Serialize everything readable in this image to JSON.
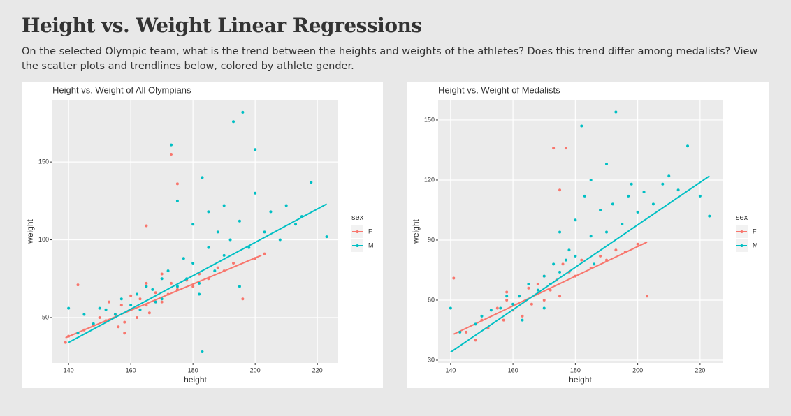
{
  "header": {
    "title": "Height vs. Weight Linear Regressions",
    "description": "On the selected Olympic team, what is the trend between the heights and weights of the athletes? Does this trend differ among medalists? View the scatter plots and trendlines below, colored by athlete gender."
  },
  "chart_data": [
    {
      "type": "scatter",
      "title": "Height vs. Weight of All Olympians",
      "x_label": "height",
      "y_label": "weight",
      "legend_title": "sex",
      "legend": "right",
      "grid": true,
      "xlim": [
        134.8,
        226.7
      ],
      "ylim": [
        20.8,
        190
      ],
      "xticks": [
        140,
        160,
        180,
        200,
        220
      ],
      "yticks": [
        50,
        100,
        150
      ],
      "series": [
        {
          "name": "F",
          "color": "#F8766D",
          "x": [
            139,
            140,
            143,
            145,
            148,
            150,
            152,
            153,
            155,
            156,
            157,
            158,
            160,
            160,
            162,
            163,
            165,
            165,
            166,
            168,
            168,
            170,
            170,
            172,
            173,
            173,
            175,
            175,
            178,
            180,
            182,
            185,
            188,
            190,
            193,
            196,
            200,
            203,
            165,
            158
          ],
          "values": [
            34,
            38,
            71,
            42,
            45,
            50,
            48,
            60,
            52,
            44,
            58,
            47,
            55,
            64,
            50,
            62,
            58,
            72,
            53,
            66,
            60,
            60,
            78,
            65,
            155,
            72,
            136,
            68,
            74,
            70,
            78,
            75,
            82,
            80,
            85,
            62,
            88,
            91,
            109,
            40
          ],
          "trendline": {
            "x": [
              139,
              202
            ],
            "values": [
              37,
              90
            ]
          }
        },
        {
          "name": "M",
          "color": "#00BFC4",
          "x": [
            140,
            143,
            145,
            148,
            150,
            152,
            155,
            157,
            160,
            162,
            163,
            165,
            167,
            168,
            170,
            170,
            172,
            173,
            175,
            175,
            177,
            178,
            180,
            180,
            182,
            183,
            183,
            185,
            185,
            187,
            188,
            190,
            190,
            192,
            193,
            195,
            196,
            198,
            200,
            200,
            203,
            205,
            208,
            210,
            213,
            215,
            218,
            223,
            182,
            195
          ],
          "values": [
            56,
            40,
            52,
            46,
            56,
            55,
            52,
            62,
            58,
            65,
            55,
            70,
            68,
            60,
            75,
            62,
            80,
            161,
            70,
            125,
            88,
            75,
            85,
            110,
            72,
            28,
            140,
            95,
            118,
            80,
            105,
            90,
            122,
            100,
            176,
            112,
            182,
            95,
            130,
            158,
            105,
            118,
            100,
            122,
            110,
            115,
            137,
            102,
            65,
            70
          ],
          "trendline": {
            "x": [
              140,
              223
            ],
            "values": [
              34,
              123
            ]
          }
        }
      ]
    },
    {
      "type": "scatter",
      "title": "Height vs. Weight of Medalists",
      "x_label": "height",
      "y_label": "weight",
      "legend_title": "sex",
      "legend": "right",
      "grid": true,
      "xlim": [
        136,
        227.2
      ],
      "ylim": [
        28.6,
        160.1
      ],
      "xticks": [
        140,
        160,
        180,
        200,
        220
      ],
      "yticks": [
        30,
        60,
        90,
        120,
        150
      ],
      "series": [
        {
          "name": "F",
          "color": "#F8766D",
          "x": [
            141,
            145,
            148,
            150,
            152,
            155,
            157,
            158,
            160,
            162,
            163,
            165,
            166,
            168,
            170,
            170,
            172,
            173,
            174,
            175,
            175,
            177,
            178,
            180,
            182,
            185,
            188,
            190,
            193,
            196,
            200,
            203,
            158,
            176
          ],
          "values": [
            71,
            44,
            40,
            50,
            46,
            56,
            50,
            60,
            55,
            62,
            52,
            66,
            58,
            68,
            60,
            72,
            65,
            136,
            70,
            115,
            62,
            136,
            74,
            72,
            80,
            76,
            82,
            80,
            85,
            84,
            88,
            62,
            64,
            78
          ],
          "trendline": {
            "x": [
              141,
              203
            ],
            "values": [
              43,
              89
            ]
          }
        },
        {
          "name": "M",
          "color": "#00BFC4",
          "x": [
            140,
            143,
            148,
            150,
            153,
            156,
            158,
            160,
            162,
            163,
            165,
            168,
            170,
            172,
            173,
            175,
            175,
            177,
            178,
            180,
            180,
            182,
            183,
            185,
            186,
            188,
            190,
            190,
            192,
            193,
            195,
            197,
            198,
            200,
            202,
            205,
            208,
            210,
            213,
            216,
            220,
            223,
            170,
            185
          ],
          "values": [
            56,
            44,
            48,
            52,
            55,
            56,
            62,
            58,
            62,
            50,
            68,
            65,
            72,
            68,
            78,
            74,
            94,
            80,
            85,
            82,
            100,
            147,
            112,
            120,
            78,
            105,
            94,
            128,
            108,
            154,
            98,
            112,
            118,
            104,
            114,
            108,
            118,
            122,
            115,
            137,
            112,
            102,
            56,
            92
          ],
          "trendline": {
            "x": [
              140,
              223
            ],
            "values": [
              34,
              122
            ]
          }
        }
      ]
    }
  ]
}
